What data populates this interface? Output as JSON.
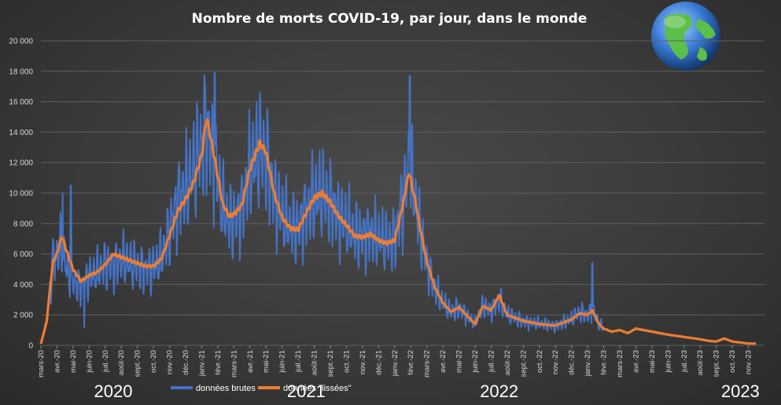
{
  "chart_data": {
    "type": "line",
    "title": "Nombre  de morts  COVID-19,  par  jour,  dans  le monde",
    "ylim": [
      0,
      20000
    ],
    "yticks": [
      "0",
      "2 000",
      "4 000",
      "6 000",
      "8 000",
      "10 000",
      "12 000",
      "14 000",
      "16 000",
      "18 000",
      "20 000"
    ],
    "x_months": [
      "mars-20",
      "avr.-20",
      "mai-20",
      "juin-20",
      "juil.-20",
      "août-20",
      "sept.-20",
      "oct.-20",
      "nov.-20",
      "déc.-20",
      "janv.-21",
      "févr.-21",
      "mars-21",
      "avr.-21",
      "mai-21",
      "juin-21",
      "juil.-21",
      "août-21",
      "sept.-21",
      "oct.-21",
      "nov.-21",
      "déc.-21",
      "janv.-22",
      "févr.-22",
      "mars-22",
      "avr.-22",
      "mai-22",
      "juin-22",
      "juil.-22",
      "août-22",
      "sept.-22",
      "oct.-22",
      "nov.-22",
      "déc.-22",
      "janv.-23",
      "févr.-23",
      "mars-23",
      "avr.-23",
      "mai-23",
      "juin-23",
      "juil.-23",
      "août-23",
      "sept.-23",
      "oct.-23",
      "nov.-23"
    ],
    "year_labels": [
      {
        "text": "2020",
        "month": "juil.-20"
      },
      {
        "text": "2021",
        "month": "juil.-21"
      },
      {
        "text": "2022",
        "month": "juil.-22"
      },
      {
        "text": "2023",
        "month": "oct.-23"
      }
    ],
    "grid": true,
    "legend_position": "bottom",
    "series": [
      {
        "name": "données brutes",
        "color": "#4472c4",
        "anchors": [
          [
            0,
            100
          ],
          [
            0.35,
            1500
          ],
          [
            0.75,
            5500
          ],
          [
            1.0,
            6000
          ],
          [
            1.3,
            6500
          ],
          [
            1.6,
            5000
          ],
          [
            2.0,
            4200
          ],
          [
            2.5,
            3800
          ],
          [
            3.0,
            4500
          ],
          [
            3.5,
            4800
          ],
          [
            4.0,
            5300
          ],
          [
            4.5,
            5200
          ],
          [
            5.0,
            5600
          ],
          [
            5.5,
            5400
          ],
          [
            6.0,
            5200
          ],
          [
            6.5,
            5000
          ],
          [
            7.0,
            5100
          ],
          [
            7.5,
            5700
          ],
          [
            8.0,
            7500
          ],
          [
            8.5,
            9500
          ],
          [
            9.0,
            10300
          ],
          [
            9.5,
            11500
          ],
          [
            10.0,
            13200
          ],
          [
            10.3,
            14500
          ],
          [
            10.8,
            12000
          ],
          [
            11.3,
            9000
          ],
          [
            11.7,
            8200
          ],
          [
            12.0,
            8200
          ],
          [
            12.5,
            9000
          ],
          [
            13.0,
            11500
          ],
          [
            13.6,
            12800
          ],
          [
            14.0,
            12500
          ],
          [
            14.5,
            10000
          ],
          [
            15.0,
            8500
          ],
          [
            15.5,
            7800
          ],
          [
            16.0,
            7700
          ],
          [
            16.5,
            8800
          ],
          [
            17.0,
            9600
          ],
          [
            17.5,
            10000
          ],
          [
            18.0,
            9500
          ],
          [
            18.5,
            8600
          ],
          [
            19.0,
            8000
          ],
          [
            19.5,
            7300
          ],
          [
            20.0,
            7200
          ],
          [
            20.5,
            7400
          ],
          [
            21.0,
            7100
          ],
          [
            21.5,
            6800
          ],
          [
            22.0,
            7000
          ],
          [
            22.5,
            9500
          ],
          [
            22.9,
            11500
          ],
          [
            23.3,
            9500
          ],
          [
            23.6,
            7500
          ],
          [
            24.0,
            5500
          ],
          [
            24.5,
            3800
          ],
          [
            25.0,
            2800
          ],
          [
            25.5,
            2200
          ],
          [
            26.0,
            2500
          ],
          [
            27.0,
            1400
          ],
          [
            27.5,
            2600
          ],
          [
            28.0,
            2300
          ],
          [
            28.5,
            3000
          ],
          [
            29.0,
            2000
          ],
          [
            29.5,
            1800
          ],
          [
            30.0,
            1600
          ],
          [
            30.5,
            1500
          ],
          [
            31.0,
            1400
          ],
          [
            32.0,
            1300
          ],
          [
            32.5,
            1500
          ],
          [
            33.0,
            1700
          ],
          [
            33.5,
            2200
          ],
          [
            34.0,
            2000
          ],
          [
            34.3,
            2400
          ],
          [
            34.7,
            1400
          ],
          [
            35.0,
            1100
          ],
          [
            35.5,
            900
          ],
          [
            36.0,
            1000
          ],
          [
            36.5,
            800
          ],
          [
            37.0,
            1100
          ],
          [
            38.0,
            900
          ],
          [
            39.0,
            700
          ],
          [
            40.0,
            550
          ],
          [
            41.0,
            400
          ],
          [
            41.5,
            300
          ],
          [
            42.0,
            250
          ],
          [
            42.5,
            450
          ],
          [
            43.0,
            250
          ],
          [
            44.0,
            120
          ],
          [
            44.5,
            120
          ]
        ],
        "spikes": [
          [
            1.85,
            10500
          ],
          [
            1.35,
            10000
          ],
          [
            2.7,
            1200
          ],
          [
            10.8,
            17900
          ],
          [
            22.95,
            17700
          ],
          [
            34.3,
            5400
          ],
          [
            42.3,
            400
          ]
        ]
      },
      {
        "name": "données \"lissées\"",
        "color": "#ed7d31",
        "anchors": [
          [
            0,
            100
          ],
          [
            0.35,
            1500
          ],
          [
            0.75,
            5500
          ],
          [
            1.0,
            6000
          ],
          [
            1.3,
            7200
          ],
          [
            1.6,
            6200
          ],
          [
            2.0,
            5000
          ],
          [
            2.5,
            4200
          ],
          [
            3.0,
            4600
          ],
          [
            3.5,
            4800
          ],
          [
            4.0,
            5300
          ],
          [
            4.5,
            6000
          ],
          [
            5.0,
            5800
          ],
          [
            5.5,
            5600
          ],
          [
            6.0,
            5400
          ],
          [
            6.5,
            5200
          ],
          [
            7.0,
            5200
          ],
          [
            7.5,
            5700
          ],
          [
            8.0,
            7200
          ],
          [
            8.5,
            8800
          ],
          [
            9.0,
            9600
          ],
          [
            9.5,
            10700
          ],
          [
            10.0,
            12500
          ],
          [
            10.3,
            15000
          ],
          [
            10.8,
            12300
          ],
          [
            11.3,
            9300
          ],
          [
            11.7,
            8500
          ],
          [
            12.0,
            8600
          ],
          [
            12.5,
            9200
          ],
          [
            13.0,
            11600
          ],
          [
            13.6,
            13300
          ],
          [
            14.0,
            12700
          ],
          [
            14.5,
            10000
          ],
          [
            15.0,
            8400
          ],
          [
            15.5,
            7700
          ],
          [
            16.0,
            7600
          ],
          [
            16.5,
            8700
          ],
          [
            17.0,
            9700
          ],
          [
            17.5,
            10000
          ],
          [
            18.0,
            9400
          ],
          [
            18.5,
            8500
          ],
          [
            19.0,
            7900
          ],
          [
            19.5,
            7200
          ],
          [
            20.0,
            7100
          ],
          [
            20.5,
            7300
          ],
          [
            21.0,
            6900
          ],
          [
            21.5,
            6700
          ],
          [
            22.0,
            6900
          ],
          [
            22.5,
            9200
          ],
          [
            22.9,
            11400
          ],
          [
            23.3,
            9400
          ],
          [
            23.6,
            7600
          ],
          [
            24.0,
            5500
          ],
          [
            24.5,
            3800
          ],
          [
            25.0,
            2800
          ],
          [
            25.5,
            2200
          ],
          [
            26.0,
            2500
          ],
          [
            27.0,
            1400
          ],
          [
            27.5,
            2600
          ],
          [
            28.0,
            2300
          ],
          [
            28.5,
            3300
          ],
          [
            29.0,
            2000
          ],
          [
            29.5,
            1800
          ],
          [
            30.0,
            1600
          ],
          [
            30.5,
            1500
          ],
          [
            31.0,
            1400
          ],
          [
            32.0,
            1300
          ],
          [
            32.5,
            1500
          ],
          [
            33.0,
            1700
          ],
          [
            33.5,
            2100
          ],
          [
            34.0,
            2000
          ],
          [
            34.3,
            2300
          ],
          [
            34.7,
            1400
          ],
          [
            35.0,
            1100
          ],
          [
            35.5,
            900
          ],
          [
            36.0,
            1000
          ],
          [
            36.5,
            800
          ],
          [
            37.0,
            1100
          ],
          [
            38.0,
            900
          ],
          [
            39.0,
            700
          ],
          [
            40.0,
            550
          ],
          [
            41.0,
            400
          ],
          [
            41.5,
            300
          ],
          [
            42.0,
            250
          ],
          [
            42.5,
            450
          ],
          [
            43.0,
            250
          ],
          [
            44.0,
            120
          ],
          [
            44.5,
            120
          ]
        ]
      }
    ]
  },
  "globe": {
    "icon": "globe-icon",
    "ocean_color": "#3a7bd5",
    "land_color": "#5cbf4a"
  }
}
